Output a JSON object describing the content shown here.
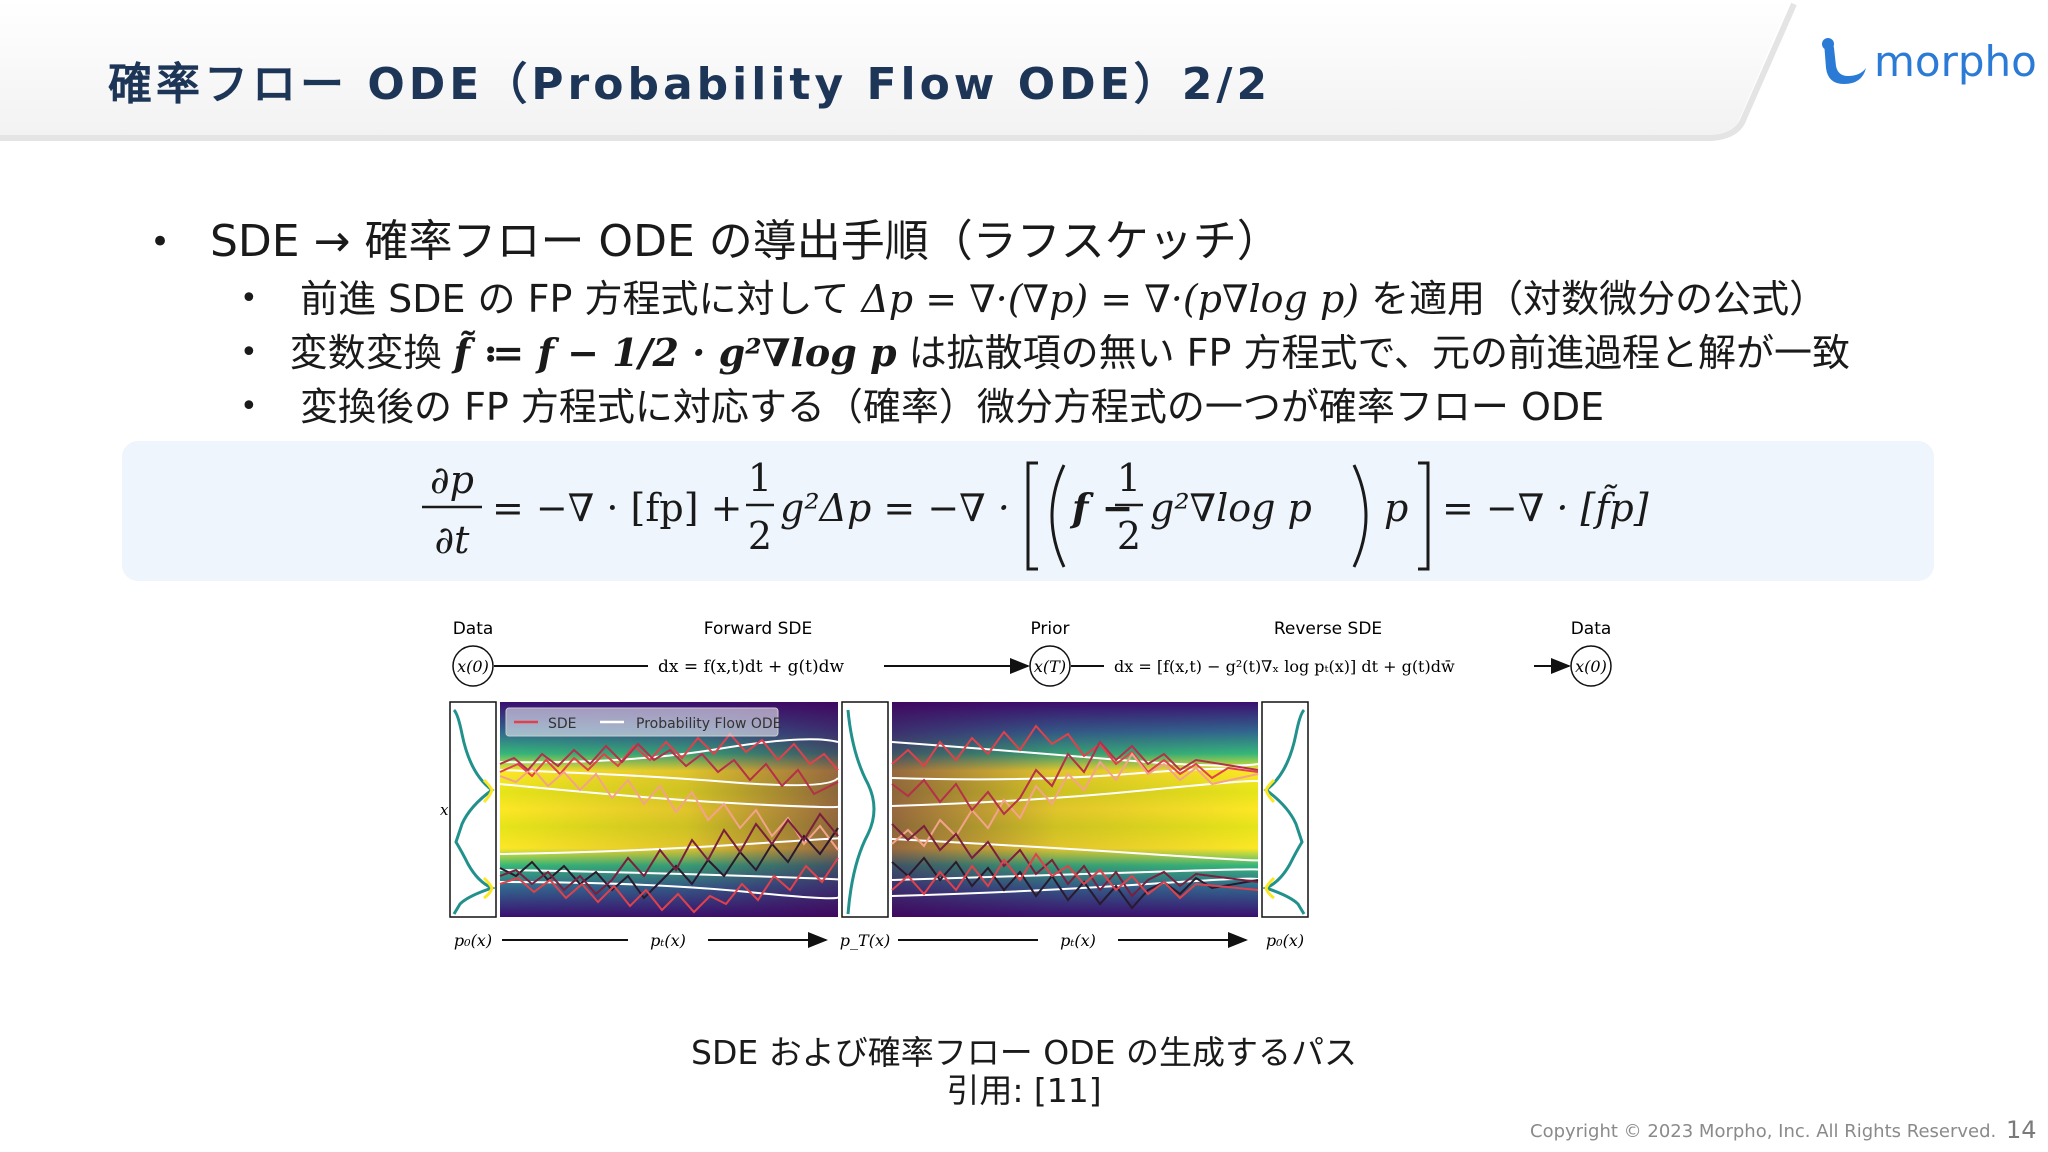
{
  "title": "確率フロー ODE（Probability Flow ODE）2/2",
  "logo_text": "morpho",
  "bullets": {
    "main": "SDE → 確率フロー ODE の導出手順（ラフスケッチ）",
    "items": [
      {
        "pre": "前進 SDE の FP 方程式に対して",
        "math": "Δp = ∇·(∇p) = ∇·(p∇log p)",
        "post": "を適用（対数微分の公式）"
      },
      {
        "pre": "変数変換",
        "math": "f̃ ≔ f − 1/2 · g²∇log p",
        "post": "は拡散項の無い FP 方程式で、元の前進過程と解が一致"
      },
      {
        "pre": "変換後の FP 方程式に対応する（確率）微分方程式の一つが確率フロー ODE",
        "math": "",
        "post": ""
      }
    ]
  },
  "equation": {
    "lhs_num": "∂p",
    "lhs_den": "∂t",
    "part1": "= −∇ · [fp] +",
    "half_num": "1",
    "half_den": "2",
    "part2": "g²Δp = −∇ ·",
    "part3": "f −",
    "part4": "g²∇log p",
    "part5": "p",
    "part6": "= −∇ · [f̃p]"
  },
  "figure": {
    "label_data_left": "Data",
    "label_forward": "Forward SDE",
    "label_prior": "Prior",
    "label_reverse": "Reverse SDE",
    "label_data_right": "Data",
    "node_x0_left": "x(0)",
    "node_xT": "x(T)",
    "node_x0_right": "x(0)",
    "forward_eq": "dx = f(x,t)dt + g(t)dw",
    "reverse_eq": "dx = [f(x,t) − g²(t)∇ₓ log pₜ(x)] dt + g(t)dw̄",
    "legend_sde": "SDE",
    "legend_ode": "Probability Flow ODE",
    "y_axis": "x",
    "bottom_p0_left": "p₀(x)",
    "bottom_pt_left": "pₜ(x)",
    "bottom_pT": "p_T(x)",
    "bottom_pt_right": "pₜ(x)",
    "bottom_p0_right": "p₀(x)"
  },
  "caption": "SDE および確率フロー ODE の生成するパス",
  "citation": "引用: [11]",
  "footer": "Copyright © 2023 Morpho, Inc. All Rights Reserved.",
  "page_number": "14",
  "colors": {
    "title": "#1d3557",
    "logo": "#2b7bd6",
    "eq_bg": "#eef5fc",
    "sde": "#e0414b",
    "ode": "#ffffff"
  }
}
